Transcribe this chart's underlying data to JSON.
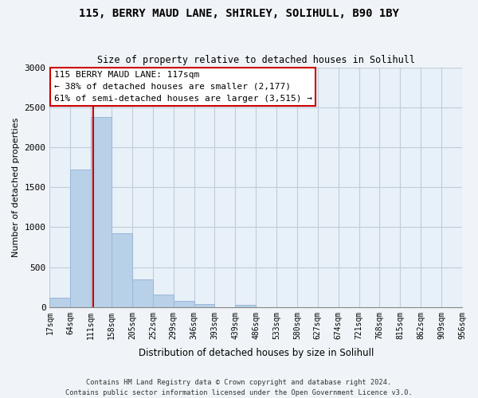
{
  "title": "115, BERRY MAUD LANE, SHIRLEY, SOLIHULL, B90 1BY",
  "subtitle": "Size of property relative to detached houses in Solihull",
  "xlabel": "Distribution of detached houses by size in Solihull",
  "ylabel": "Number of detached properties",
  "bar_values": [
    120,
    1720,
    2380,
    920,
    350,
    155,
    80,
    40,
    0,
    25,
    0,
    0,
    0,
    0,
    0,
    0,
    0,
    0,
    0,
    0
  ],
  "bin_labels": [
    "17sqm",
    "64sqm",
    "111sqm",
    "158sqm",
    "205sqm",
    "252sqm",
    "299sqm",
    "346sqm",
    "393sqm",
    "439sqm",
    "486sqm",
    "533sqm",
    "580sqm",
    "627sqm",
    "674sqm",
    "721sqm",
    "768sqm",
    "815sqm",
    "862sqm",
    "909sqm",
    "956sqm"
  ],
  "bar_color": "#b8d0e8",
  "bar_edge_color": "#9ab8d8",
  "highlight_line_color": "#cc0000",
  "annotation_line1": "115 BERRY MAUD LANE: 117sqm",
  "annotation_line2": "← 38% of detached houses are smaller (2,177)",
  "annotation_line3": "61% of semi-detached houses are larger (3,515) →",
  "annotation_box_color": "white",
  "annotation_box_edge": "#cc0000",
  "ylim": [
    0,
    3000
  ],
  "yticks": [
    0,
    500,
    1000,
    1500,
    2000,
    2500,
    3000
  ],
  "footer_line1": "Contains HM Land Registry data © Crown copyright and database right 2024.",
  "footer_line2": "Contains public sector information licensed under the Open Government Licence v3.0.",
  "bg_color": "#f0f4f8",
  "plot_bg_color": "#e8f0f8",
  "grid_color": "#c0ccd8"
}
